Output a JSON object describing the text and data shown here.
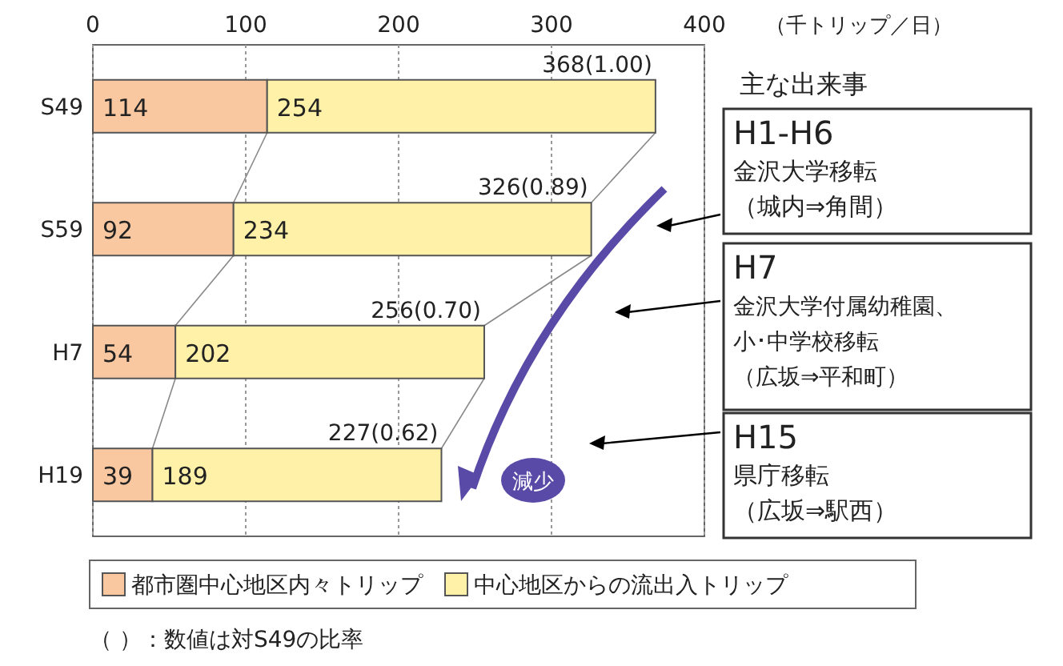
{
  "chart_data": {
    "type": "bar",
    "orientation": "horizontal",
    "stacked": true,
    "categories": [
      "S49",
      "S59",
      "H7",
      "H19"
    ],
    "series": [
      {
        "name": "都市圏中心地区内々トリップ",
        "color": "#fac8a0",
        "values": [
          114,
          92,
          54,
          39
        ]
      },
      {
        "name": "中心地区からの流出入トリップ",
        "color": "#fff2a8",
        "values": [
          254,
          234,
          202,
          189
        ]
      }
    ],
    "totals": [
      "368(1.00)",
      "326(0.89)",
      "256(0.70)",
      "227(0.62)"
    ],
    "data_labels": true,
    "xlim": [
      0,
      400
    ],
    "xticks": [
      0,
      100,
      200,
      300,
      400
    ],
    "grid": "x",
    "legend": "bottom",
    "annotations": [
      "（千トリップ／日）",
      "主な出来事",
      "H1-H6",
      "金沢大学移転",
      "（城内⇒角間）",
      "H7",
      "金沢大学付属幼稚園、",
      "小･中学校移転",
      "（広坂⇒平和町）",
      "H15",
      "県庁移転",
      "（広坂⇒駅西）",
      "減少",
      "（ ）：数値は対S49の比率"
    ]
  }
}
